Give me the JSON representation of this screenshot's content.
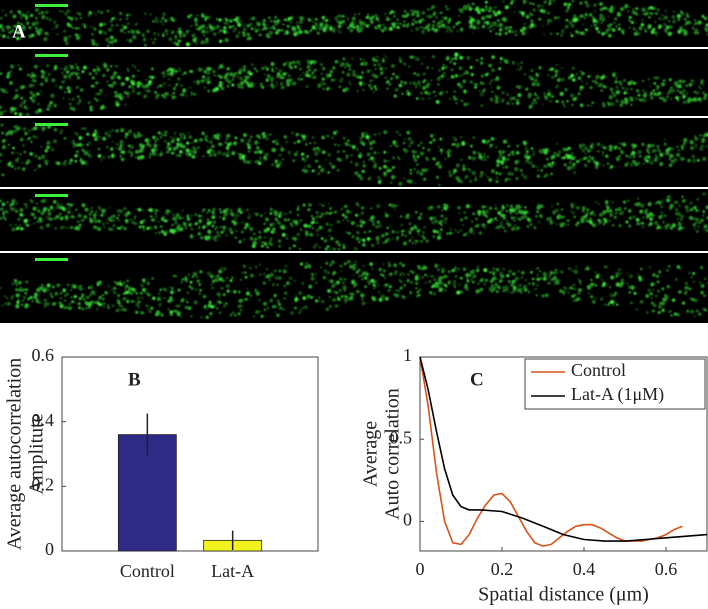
{
  "panel_a": {
    "label": "A"
  },
  "chart_data": [
    {
      "type": "bar",
      "panel_label": "B",
      "ylabel": [
        "Average autocorrelation",
        "Amplitute"
      ],
      "categories": [
        "Control",
        "Lat-A"
      ],
      "values": [
        0.36,
        0.033
      ],
      "errors": [
        0.065,
        0.03
      ],
      "colors": [
        "#2e2a86",
        "#f2f21e"
      ],
      "ylim": [
        0,
        0.6
      ],
      "yticks": [
        0,
        0.2,
        0.4,
        0.6
      ]
    },
    {
      "type": "line",
      "panel_label": "C",
      "ylabel": [
        "Average",
        "Auto correlation"
      ],
      "xlabel": "Spatial distance (μm)",
      "xlim": [
        0,
        0.7
      ],
      "xticks": [
        0,
        0.2,
        0.4,
        0.6
      ],
      "ylim": [
        -0.18,
        1
      ],
      "yticks": [
        0,
        0.5,
        1
      ],
      "legend": "upper right",
      "series": [
        {
          "name": "Control",
          "color": "#d95319",
          "x": [
            0,
            0.02,
            0.04,
            0.06,
            0.08,
            0.1,
            0.12,
            0.14,
            0.16,
            0.18,
            0.2,
            0.22,
            0.24,
            0.26,
            0.28,
            0.3,
            0.32,
            0.34,
            0.36,
            0.38,
            0.4,
            0.42,
            0.44,
            0.46,
            0.48,
            0.5,
            0.52,
            0.54,
            0.56,
            0.58,
            0.6,
            0.62,
            0.64
          ],
          "values": [
            1,
            0.7,
            0.3,
            0.0,
            -0.13,
            -0.14,
            -0.08,
            0.02,
            0.1,
            0.16,
            0.17,
            0.12,
            0.03,
            -0.06,
            -0.13,
            -0.15,
            -0.14,
            -0.1,
            -0.06,
            -0.03,
            -0.02,
            -0.02,
            -0.04,
            -0.07,
            -0.1,
            -0.12,
            -0.12,
            -0.12,
            -0.11,
            -0.1,
            -0.08,
            -0.05,
            -0.03
          ]
        },
        {
          "name": "Lat-A (1μM)",
          "color": "#000000",
          "x": [
            0,
            0.02,
            0.04,
            0.06,
            0.08,
            0.1,
            0.12,
            0.15,
            0.2,
            0.25,
            0.3,
            0.35,
            0.4,
            0.45,
            0.5,
            0.55,
            0.6,
            0.65,
            0.7
          ],
          "values": [
            1,
            0.8,
            0.55,
            0.32,
            0.16,
            0.09,
            0.07,
            0.07,
            0.06,
            0.02,
            -0.03,
            -0.08,
            -0.11,
            -0.12,
            -0.12,
            -0.11,
            -0.1,
            -0.09,
            -0.08
          ]
        }
      ]
    }
  ]
}
